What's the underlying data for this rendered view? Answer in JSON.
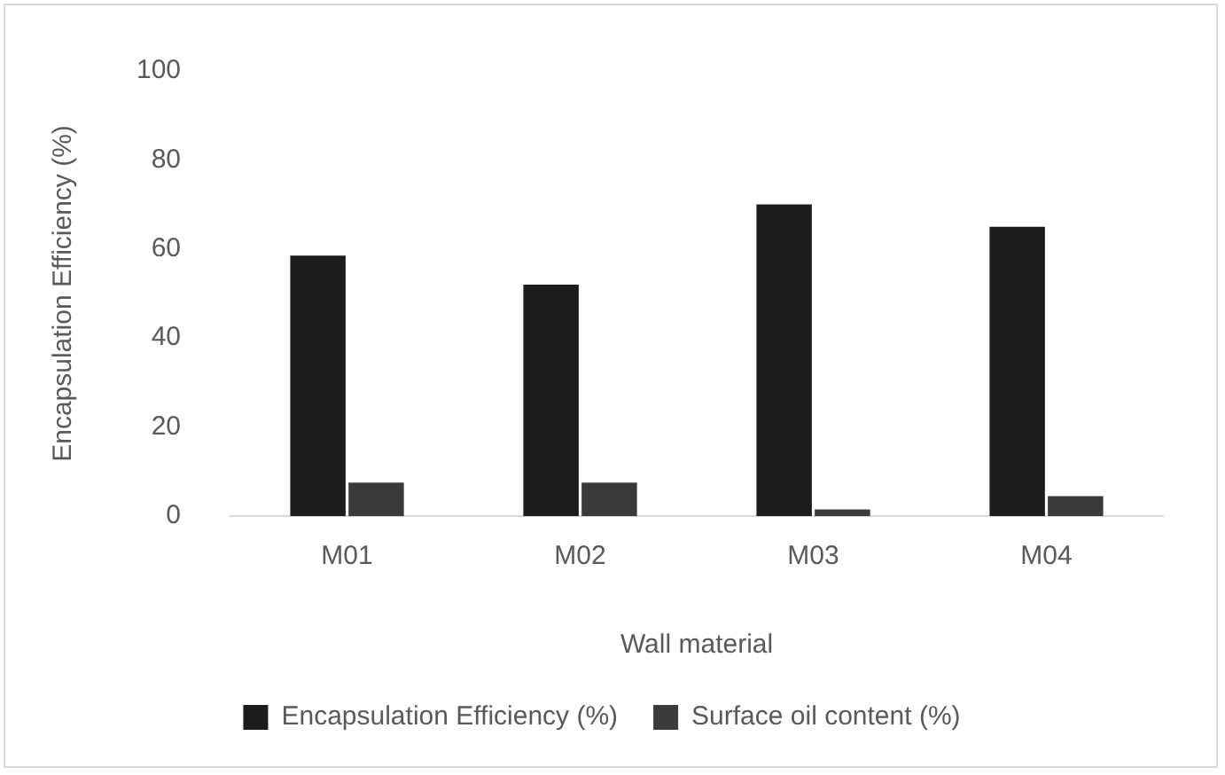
{
  "chart_data": {
    "type": "bar",
    "xlabel": "Wall material",
    "ylabel": "Encapsulation Efficiency (%)",
    "categories": [
      "M01",
      "M02",
      "M03",
      "M04"
    ],
    "series": [
      {
        "name": "Encapsulation Efficiency (%)",
        "color": "#1c1c1c",
        "values": [
          58.5,
          52,
          70,
          65
        ]
      },
      {
        "name": "Surface oil content (%)",
        "color": "#3a3a3a",
        "values": [
          7.5,
          7.5,
          1.5,
          4.5
        ]
      }
    ],
    "ylim": [
      0,
      100
    ],
    "yticks": [
      0,
      20,
      40,
      60,
      80,
      100
    ],
    "grid": false,
    "legend": "bottom"
  }
}
